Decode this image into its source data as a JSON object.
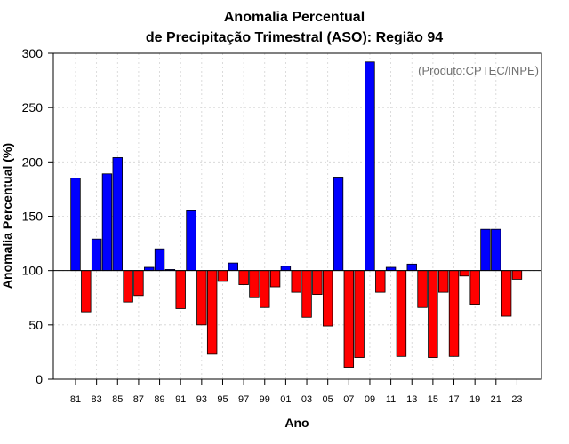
{
  "chart_data": {
    "type": "bar",
    "title": "Anomalia Percentual",
    "subtitle": "de Precipitação Trimestral (ASO): Região 94",
    "xlabel": "Ano",
    "ylabel": "Anomalia Percentual (%)",
    "annotation": "(Produto:CPTEC/INPE)",
    "baseline": 100,
    "ylim": [
      0,
      300
    ],
    "yticks": [
      0,
      50,
      100,
      150,
      200,
      250,
      300
    ],
    "grid": true,
    "colors": {
      "above": "#0000ff",
      "below": "#ff0000",
      "grid": "#d3d3d3",
      "annotation": "#707070"
    },
    "categories": [
      "81",
      "82",
      "83",
      "84",
      "85",
      "86",
      "87",
      "88",
      "89",
      "90",
      "91",
      "92",
      "93",
      "94",
      "95",
      "96",
      "97",
      "98",
      "99",
      "00",
      "01",
      "02",
      "03",
      "04",
      "05",
      "06",
      "07",
      "08",
      "09",
      "10",
      "11",
      "12",
      "13",
      "14",
      "15",
      "16",
      "17",
      "18",
      "19",
      "20",
      "21",
      "22",
      "23"
    ],
    "tick_labels": [
      "81",
      "83",
      "85",
      "87",
      "89",
      "91",
      "93",
      "95",
      "97",
      "99",
      "01",
      "03",
      "05",
      "07",
      "09",
      "11",
      "13",
      "15",
      "17",
      "19",
      "21",
      "23"
    ],
    "values": [
      185,
      62,
      129,
      189,
      204,
      71,
      77,
      103,
      120,
      101,
      65,
      155,
      50,
      23,
      90,
      107,
      87,
      75,
      66,
      85,
      104,
      80,
      57,
      78,
      49,
      186,
      11,
      20,
      292,
      80,
      103,
      21,
      106,
      66,
      20,
      80,
      21,
      95,
      69,
      138,
      138,
      58,
      92
    ]
  }
}
